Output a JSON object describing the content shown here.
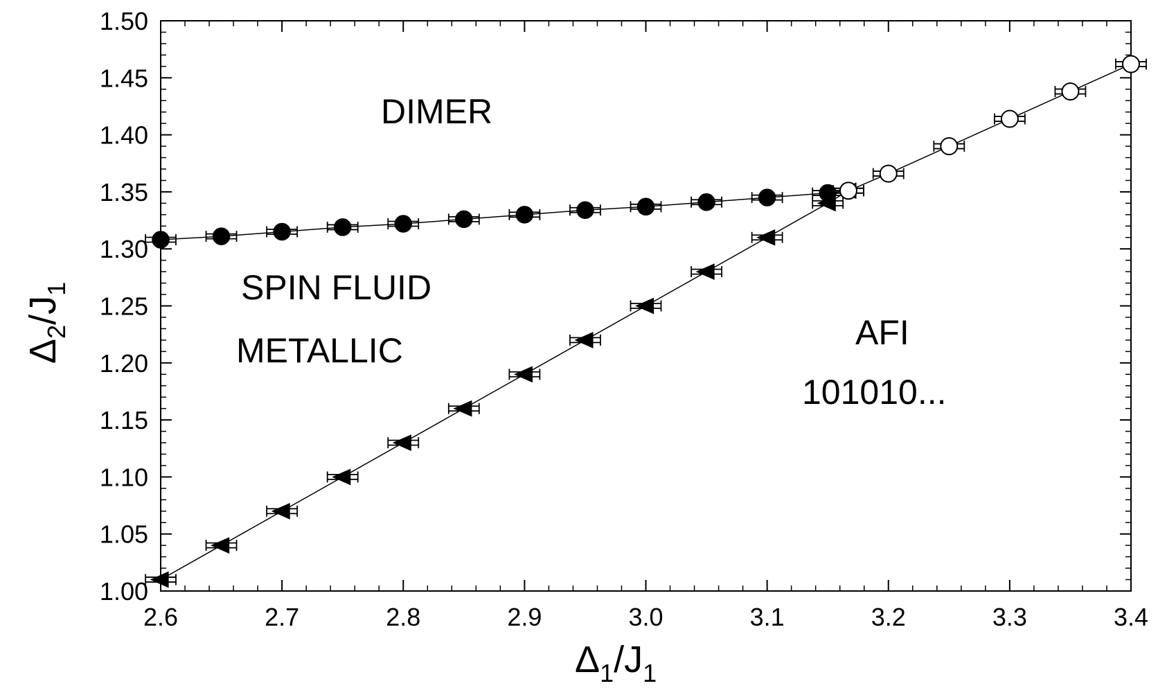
{
  "chart_data": {
    "type": "scatter",
    "xlim": [
      2.6,
      3.4
    ],
    "ylim": [
      1.0,
      1.5
    ],
    "xticks": [
      "2.6",
      "2.7",
      "2.8",
      "2.9",
      "3.0",
      "3.1",
      "3.2",
      "3.3",
      "3.4"
    ],
    "yticks": [
      "1.00",
      "1.05",
      "1.10",
      "1.15",
      "1.20",
      "1.25",
      "1.30",
      "1.35",
      "1.40",
      "1.45",
      "1.50"
    ],
    "xlabel": {
      "main": "Δ",
      "sub": "1",
      "rest": "/J",
      "sub2": "1"
    },
    "ylabel": {
      "main": "Δ",
      "sub": "2",
      "rest": "/J",
      "sub2": "1"
    },
    "grid": false,
    "regions": {
      "dimer": "DIMER",
      "spin_fluid": "SPIN FLUID",
      "metallic": "METALLIC",
      "afi": "AFI",
      "afi_pattern": "101010..."
    },
    "series": [
      {
        "marker": "filled-circle",
        "x": [
          2.6,
          2.65,
          2.7,
          2.75,
          2.8,
          2.85,
          2.9,
          2.95,
          3.0,
          3.05,
          3.1,
          3.15,
          3.167
        ],
        "y": [
          1.308,
          1.311,
          1.315,
          1.319,
          1.322,
          1.326,
          1.33,
          1.334,
          1.337,
          1.341,
          1.345,
          1.349,
          1.351
        ]
      },
      {
        "marker": "left-triangle",
        "x": [
          2.6,
          2.65,
          2.7,
          2.75,
          2.8,
          2.85,
          2.9,
          2.95,
          3.0,
          3.05,
          3.1,
          3.15,
          3.167
        ],
        "y": [
          1.01,
          1.04,
          1.07,
          1.1,
          1.13,
          1.16,
          1.19,
          1.22,
          1.25,
          1.28,
          1.31,
          1.34,
          1.351
        ]
      },
      {
        "marker": "open-circle",
        "x": [
          3.167,
          3.2,
          3.25,
          3.3,
          3.35,
          3.4
        ],
        "y": [
          1.351,
          1.366,
          1.39,
          1.414,
          1.438,
          1.462
        ]
      }
    ]
  }
}
